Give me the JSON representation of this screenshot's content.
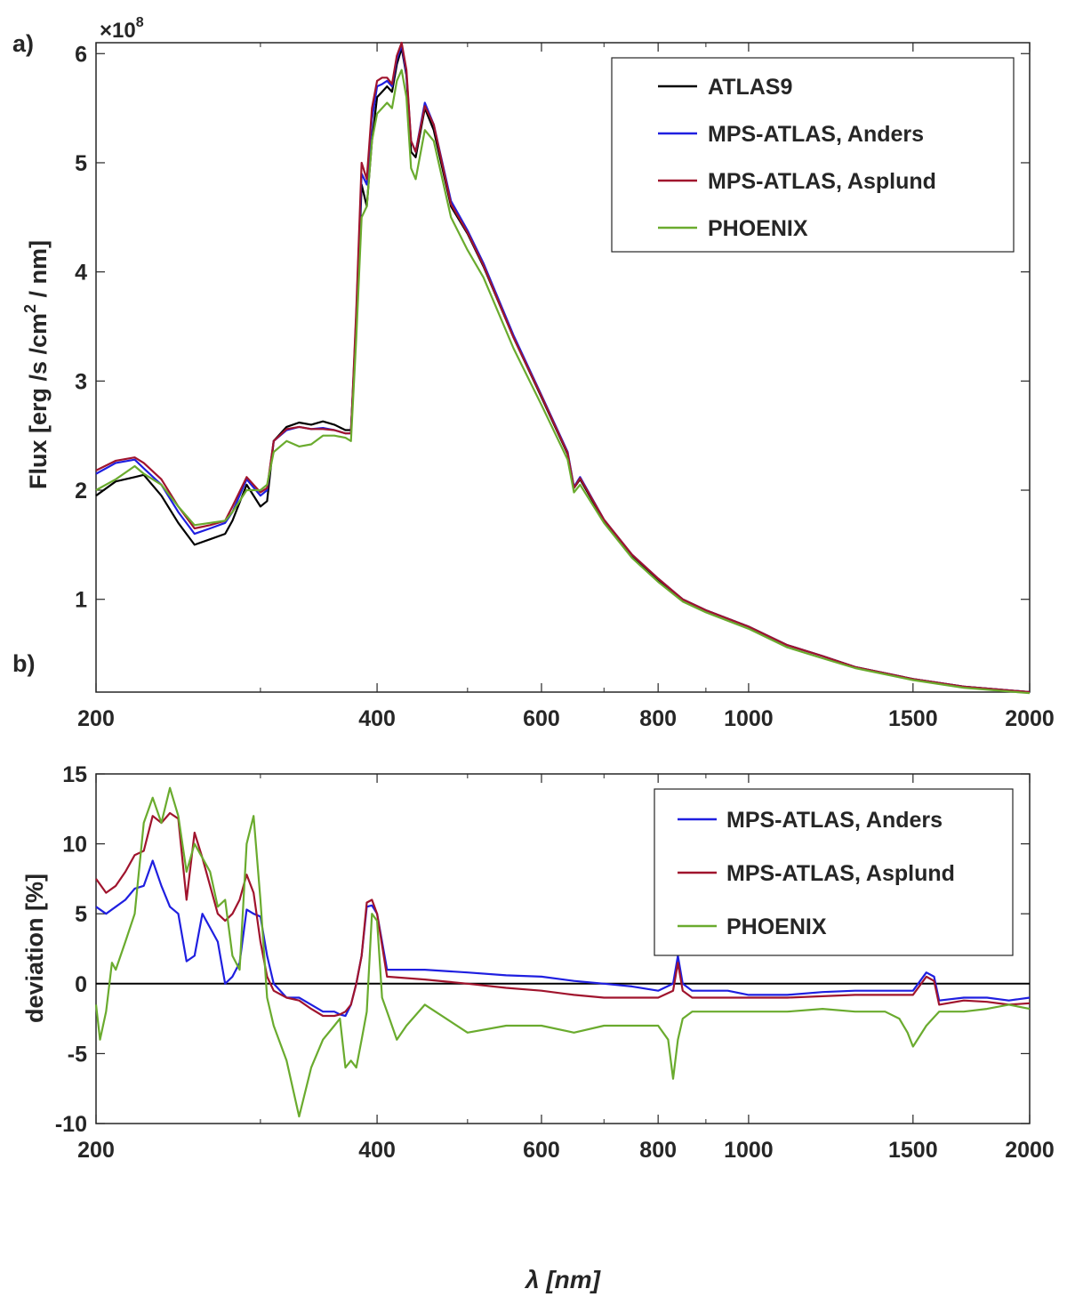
{
  "panel_labels": {
    "a": "a)",
    "b": "b)"
  },
  "chart_data": [
    {
      "type": "line",
      "panel": "a",
      "ylabel": "Flux [erg /s /cm",
      "ylabel_sup": "2",
      "ylabel_end": " / nm]",
      "xlabel": "",
      "exponent_label": "×10",
      "exponent_sup": "8",
      "xscale": "log",
      "xlim": [
        200,
        2000
      ],
      "ylim": [
        0.15,
        6.1
      ],
      "x_ticks": [
        200,
        400,
        600,
        800,
        1000,
        1500,
        2000
      ],
      "x_tick_labels": [
        "200",
        "400",
        "600",
        "800",
        "1000",
        "1500",
        "2000"
      ],
      "y_ticks": [
        1,
        2,
        3,
        4,
        5,
        6
      ],
      "y_tick_labels": [
        "1",
        "2",
        "3",
        "4",
        "5",
        "6"
      ],
      "legend_position": "top-right",
      "colors": {
        "atlas9": "#000000",
        "anders": "#1f1fe0",
        "asplund": "#a0142d",
        "phoenix": "#6aab2e"
      },
      "series": [
        {
          "name": "ATLAS9",
          "key": "atlas9",
          "x": [
            200,
            210,
            220,
            225,
            235,
            245,
            255,
            265,
            275,
            280,
            290,
            300,
            305,
            310,
            320,
            330,
            340,
            350,
            360,
            370,
            375,
            380,
            385,
            390,
            395,
            400,
            405,
            410,
            415,
            420,
            425,
            430,
            435,
            440,
            450,
            460,
            480,
            500,
            520,
            560,
            600,
            640,
            650,
            660,
            700,
            750,
            800,
            850,
            900,
            1000,
            1100,
            1200,
            1300,
            1500,
            1700,
            2000
          ],
          "y": [
            1.95,
            2.08,
            2.12,
            2.14,
            1.95,
            1.7,
            1.5,
            1.55,
            1.6,
            1.72,
            2.05,
            1.85,
            1.9,
            2.45,
            2.58,
            2.62,
            2.6,
            2.63,
            2.6,
            2.55,
            2.55,
            3.5,
            4.8,
            4.6,
            5.2,
            5.6,
            5.65,
            5.7,
            5.65,
            5.9,
            6.05,
            5.8,
            5.1,
            5.05,
            5.5,
            5.3,
            4.6,
            4.35,
            4.05,
            3.4,
            2.85,
            2.33,
            2.02,
            2.1,
            1.72,
            1.4,
            1.18,
            1.0,
            0.9,
            0.75,
            0.58,
            0.48,
            0.38,
            0.27,
            0.2,
            0.15
          ]
        },
        {
          "name": "MPS-ATLAS,  Anders",
          "key": "anders",
          "x": [
            200,
            210,
            220,
            225,
            235,
            245,
            255,
            265,
            275,
            280,
            290,
            300,
            305,
            310,
            320,
            330,
            340,
            350,
            360,
            370,
            375,
            380,
            385,
            390,
            395,
            400,
            405,
            410,
            415,
            420,
            425,
            430,
            435,
            440,
            450,
            460,
            480,
            500,
            520,
            560,
            600,
            640,
            650,
            660,
            700,
            750,
            800,
            850,
            900,
            1000,
            1100,
            1200,
            1300,
            1500,
            1700,
            2000
          ],
          "y": [
            2.15,
            2.25,
            2.28,
            2.2,
            2.05,
            1.8,
            1.6,
            1.65,
            1.7,
            1.8,
            2.1,
            1.95,
            2.0,
            2.45,
            2.55,
            2.58,
            2.56,
            2.57,
            2.55,
            2.52,
            2.52,
            3.6,
            4.9,
            4.8,
            5.4,
            5.7,
            5.72,
            5.75,
            5.7,
            5.95,
            6.08,
            5.82,
            5.2,
            5.1,
            5.55,
            5.35,
            4.65,
            4.38,
            4.08,
            3.42,
            2.87,
            2.35,
            2.03,
            2.12,
            1.73,
            1.41,
            1.19,
            1.0,
            0.9,
            0.75,
            0.58,
            0.48,
            0.38,
            0.27,
            0.2,
            0.15
          ]
        },
        {
          "name": "MPS-ATLAS, Asplund",
          "key": "asplund",
          "x": [
            200,
            210,
            220,
            225,
            235,
            245,
            255,
            265,
            275,
            280,
            290,
            300,
            305,
            310,
            320,
            330,
            340,
            350,
            360,
            370,
            375,
            380,
            385,
            390,
            395,
            400,
            405,
            410,
            415,
            420,
            425,
            430,
            435,
            440,
            450,
            460,
            480,
            500,
            520,
            560,
            600,
            640,
            650,
            660,
            700,
            750,
            800,
            850,
            900,
            1000,
            1100,
            1200,
            1300,
            1500,
            1700,
            2000
          ],
          "y": [
            2.18,
            2.27,
            2.3,
            2.25,
            2.1,
            1.85,
            1.65,
            1.68,
            1.72,
            1.85,
            2.12,
            1.98,
            2.02,
            2.45,
            2.56,
            2.58,
            2.56,
            2.56,
            2.55,
            2.52,
            2.52,
            3.65,
            5.0,
            4.85,
            5.5,
            5.75,
            5.78,
            5.78,
            5.72,
            5.98,
            6.1,
            5.85,
            5.2,
            5.1,
            5.52,
            5.35,
            4.62,
            4.36,
            4.06,
            3.4,
            2.86,
            2.34,
            2.02,
            2.11,
            1.73,
            1.41,
            1.19,
            1.0,
            0.9,
            0.75,
            0.58,
            0.48,
            0.38,
            0.27,
            0.2,
            0.15
          ]
        },
        {
          "name": "PHOENIX",
          "key": "phoenix",
          "x": [
            200,
            210,
            220,
            225,
            235,
            245,
            255,
            265,
            275,
            280,
            290,
            300,
            305,
            310,
            320,
            330,
            340,
            350,
            360,
            370,
            375,
            380,
            385,
            390,
            395,
            400,
            405,
            410,
            415,
            420,
            425,
            430,
            435,
            440,
            450,
            460,
            480,
            500,
            520,
            560,
            600,
            640,
            650,
            660,
            700,
            750,
            800,
            850,
            900,
            1000,
            1100,
            1200,
            1300,
            1500,
            1700,
            2000
          ],
          "y": [
            2.0,
            2.1,
            2.22,
            2.15,
            2.05,
            1.85,
            1.68,
            1.7,
            1.72,
            1.8,
            2.0,
            2.0,
            2.05,
            2.35,
            2.45,
            2.4,
            2.42,
            2.5,
            2.5,
            2.48,
            2.45,
            3.4,
            4.5,
            4.6,
            5.2,
            5.45,
            5.5,
            5.55,
            5.5,
            5.75,
            5.85,
            5.6,
            4.95,
            4.85,
            5.3,
            5.2,
            4.5,
            4.2,
            3.95,
            3.3,
            2.78,
            2.28,
            1.98,
            2.05,
            1.7,
            1.38,
            1.16,
            0.98,
            0.88,
            0.73,
            0.56,
            0.46,
            0.37,
            0.26,
            0.19,
            0.14
          ]
        }
      ]
    },
    {
      "type": "line",
      "panel": "b",
      "ylabel": "deviation [%]",
      "xlabel": "λ [nm]",
      "xscale": "log",
      "xlim": [
        200,
        2000
      ],
      "ylim": [
        -10,
        15
      ],
      "x_ticks": [
        200,
        400,
        600,
        800,
        1000,
        1500,
        2000
      ],
      "x_tick_labels": [
        "200",
        "400",
        "600",
        "800",
        "1000",
        "1500",
        "2000"
      ],
      "y_ticks": [
        -10,
        -5,
        0,
        5,
        10,
        15
      ],
      "y_tick_labels": [
        "-10",
        "-5",
        "0",
        "5",
        "10",
        "15"
      ],
      "zero_line": 0,
      "legend_position": "top-right",
      "series": [
        {
          "name": "MPS-ATLAS, Anders",
          "key": "anders",
          "x": [
            200,
            205,
            210,
            215,
            220,
            225,
            230,
            235,
            240,
            245,
            250,
            255,
            260,
            265,
            270,
            275,
            280,
            285,
            290,
            295,
            300,
            305,
            310,
            320,
            330,
            340,
            350,
            360,
            365,
            370,
            375,
            380,
            385,
            390,
            395,
            400,
            410,
            450,
            500,
            550,
            600,
            650,
            700,
            750,
            800,
            830,
            840,
            850,
            870,
            900,
            950,
            1000,
            1100,
            1200,
            1300,
            1400,
            1500,
            1550,
            1580,
            1600,
            1700,
            1800,
            1900,
            2000
          ],
          "y": [
            5.5,
            5.0,
            5.5,
            6.0,
            6.8,
            7.0,
            8.8,
            7.0,
            5.5,
            5.0,
            1.6,
            2.0,
            5.0,
            4.0,
            3.0,
            0.0,
            0.5,
            1.5,
            5.3,
            5.0,
            4.8,
            2.0,
            0.0,
            -1.0,
            -1.0,
            -1.5,
            -2.0,
            -2.0,
            -2.2,
            -2.3,
            -1.5,
            0.0,
            2.0,
            5.5,
            5.6,
            5.0,
            1.0,
            1.0,
            0.8,
            0.6,
            0.5,
            0.2,
            0.0,
            -0.2,
            -0.5,
            0.0,
            2.0,
            0.0,
            -0.5,
            -0.5,
            -0.5,
            -0.8,
            -0.8,
            -0.6,
            -0.5,
            -0.5,
            -0.5,
            0.8,
            0.5,
            -1.2,
            -1.0,
            -1.0,
            -1.2,
            -1.0
          ]
        },
        {
          "name": "MPS-ATLAS, Asplund",
          "key": "asplund",
          "x": [
            200,
            205,
            210,
            215,
            220,
            225,
            230,
            235,
            240,
            245,
            250,
            255,
            260,
            265,
            270,
            275,
            280,
            285,
            290,
            295,
            300,
            305,
            310,
            320,
            330,
            340,
            350,
            360,
            365,
            370,
            375,
            380,
            385,
            390,
            395,
            400,
            410,
            450,
            500,
            550,
            600,
            650,
            700,
            750,
            800,
            830,
            840,
            850,
            870,
            900,
            950,
            1000,
            1100,
            1200,
            1300,
            1400,
            1500,
            1550,
            1580,
            1600,
            1700,
            1800,
            1900,
            2000
          ],
          "y": [
            7.5,
            6.5,
            7.0,
            8.0,
            9.2,
            9.5,
            12.0,
            11.5,
            12.2,
            11.8,
            6.0,
            10.8,
            9.0,
            7.0,
            5.0,
            4.5,
            5.0,
            6.0,
            7.8,
            6.5,
            3.0,
            0.5,
            -0.5,
            -1.0,
            -1.2,
            -1.8,
            -2.3,
            -2.3,
            -2.2,
            -2.0,
            -1.5,
            0.0,
            2.0,
            5.8,
            6.0,
            5.0,
            0.5,
            0.3,
            0.0,
            -0.3,
            -0.5,
            -0.8,
            -1.0,
            -1.0,
            -1.0,
            -0.5,
            1.5,
            -0.5,
            -1.0,
            -1.0,
            -1.0,
            -1.0,
            -1.0,
            -0.9,
            -0.8,
            -0.8,
            -0.8,
            0.5,
            0.2,
            -1.5,
            -1.2,
            -1.3,
            -1.5,
            -1.4
          ]
        },
        {
          "name": "PHOENIX",
          "key": "phoenix",
          "x": [
            200,
            202,
            205,
            208,
            210,
            215,
            220,
            225,
            230,
            235,
            240,
            245,
            250,
            255,
            260,
            265,
            270,
            275,
            280,
            285,
            290,
            295,
            300,
            305,
            310,
            320,
            330,
            340,
            350,
            360,
            365,
            370,
            375,
            380,
            385,
            390,
            395,
            400,
            405,
            410,
            420,
            430,
            450,
            500,
            550,
            600,
            650,
            700,
            750,
            800,
            820,
            830,
            840,
            850,
            870,
            900,
            950,
            1000,
            1100,
            1200,
            1300,
            1400,
            1450,
            1480,
            1500,
            1550,
            1600,
            1700,
            1800,
            1900,
            2000
          ],
          "y": [
            -1.5,
            -4.0,
            -2.0,
            1.5,
            1.0,
            3.0,
            5.0,
            11.5,
            13.3,
            11.5,
            14.0,
            12.0,
            8.0,
            10.0,
            9.0,
            8.0,
            5.5,
            6.0,
            2.0,
            1.0,
            10.0,
            12.0,
            6.0,
            -1.0,
            -3.0,
            -5.5,
            -9.5,
            -6.0,
            -4.0,
            -3.0,
            -2.5,
            -6.0,
            -5.5,
            -6.0,
            -4.0,
            -2.0,
            5.0,
            4.5,
            -1.0,
            -2.0,
            -4.0,
            -3.0,
            -1.5,
            -3.5,
            -3.0,
            -3.0,
            -3.5,
            -3.0,
            -3.0,
            -3.0,
            -4.0,
            -6.8,
            -4.0,
            -2.5,
            -2.0,
            -2.0,
            -2.0,
            -2.0,
            -2.0,
            -1.8,
            -2.0,
            -2.0,
            -2.5,
            -3.5,
            -4.5,
            -3.0,
            -2.0,
            -2.0,
            -1.8,
            -1.5,
            -1.8
          ]
        }
      ]
    }
  ]
}
